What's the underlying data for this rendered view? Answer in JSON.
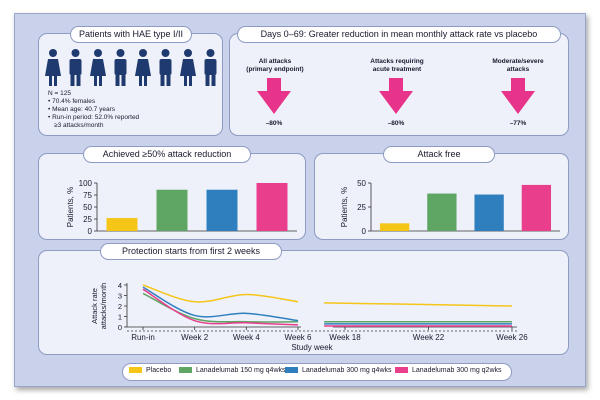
{
  "colors": {
    "placebo": "#f5c518",
    "l150": "#5fa564",
    "l300q4": "#2f7fbf",
    "l300q2": "#e83e8c",
    "pink_arrow": "#e8338a"
  },
  "patients": {
    "title": "Patients with HAE type I/II",
    "n": "N = 125",
    "bullets": [
      "70.4% females",
      "Mean age: 40.7 years",
      "Run-in period: 52.0% reported",
      "≥3 attacks/month"
    ]
  },
  "reduction": {
    "title": "Days 0–69: Greater reduction in mean monthly attack rate vs placebo",
    "items": [
      {
        "label_l1": "All attacks",
        "label_l2": "(primary endpoint)",
        "value": "–80%"
      },
      {
        "label_l1": "Attacks requiring",
        "label_l2": "acute treatment",
        "value": "–80%"
      },
      {
        "label_l1": "Moderate/severe",
        "label_l2": "attacks",
        "value": "–77%"
      }
    ]
  },
  "chart_data": [
    {
      "type": "bar",
      "title": "Achieved ≥50% attack reduction",
      "ylabel": "Patients, %",
      "ylim": [
        0,
        100
      ],
      "yticks": [
        "0",
        "25",
        "50",
        "75",
        "100"
      ],
      "categories": [
        "Placebo",
        "Lanadelumab 150 mg q4wks",
        "Lanadelumab 300 mg q4wks",
        "Lanadelumab 300 mg q2wks"
      ],
      "values": [
        27,
        86,
        86,
        100
      ]
    },
    {
      "type": "bar",
      "title": "Attack free",
      "ylabel": "Patients, %",
      "ylim": [
        0,
        50
      ],
      "yticks": [
        "0",
        "25",
        "50"
      ],
      "categories": [
        "Placebo",
        "Lanadelumab 150 mg q4wks",
        "Lanadelumab 300 mg q4wks",
        "Lanadelumab 300 mg q2wks"
      ],
      "values": [
        8,
        39,
        38,
        48
      ]
    },
    {
      "type": "line",
      "title": "Protection starts from first 2 weeks",
      "xlabel": "Study week",
      "ylabel_l1": "Attack rate",
      "ylabel_l2": "attacks/month",
      "ylim": [
        0,
        4
      ],
      "yticks": [
        "0",
        "1",
        "2",
        "3",
        "4"
      ],
      "xticks_left": [
        "Run-in",
        "Week 2",
        "Week 4",
        "Week 6"
      ],
      "xticks_right": [
        "Week 18",
        "Week 22",
        "Week 26"
      ],
      "series": [
        {
          "name": "Placebo",
          "x_left": [
            0,
            2,
            4,
            6
          ],
          "y_left": [
            4.0,
            2.4,
            3.1,
            2.4
          ],
          "x_right": [
            17,
            26
          ],
          "y_right": [
            2.3,
            2.0
          ]
        },
        {
          "name": "Lanadelumab 150 mg q4wks",
          "x_left": [
            0,
            2,
            4,
            6
          ],
          "y_left": [
            3.2,
            0.8,
            0.5,
            0.5
          ],
          "x_right": [
            17,
            26
          ],
          "y_right": [
            0.5,
            0.5
          ]
        },
        {
          "name": "Lanadelumab 300 mg q4wks",
          "x_left": [
            0,
            2,
            4,
            6
          ],
          "y_left": [
            3.8,
            1.1,
            1.3,
            0.6
          ],
          "x_right": [
            17,
            26
          ],
          "y_right": [
            0.3,
            0.3
          ]
        },
        {
          "name": "Lanadelumab 300 mg q2wks",
          "x_left": [
            0,
            2,
            4,
            6
          ],
          "y_left": [
            3.6,
            0.6,
            0.4,
            0.2
          ],
          "x_right": [
            17,
            26
          ],
          "y_right": [
            0.1,
            0.1
          ]
        }
      ]
    }
  ],
  "legend": [
    "Placebo",
    "Lanadelumab 150 mg q4wks",
    "Lanadelumab 300 mg q4wks",
    "Lanadelumab 300 mg q2wks"
  ]
}
